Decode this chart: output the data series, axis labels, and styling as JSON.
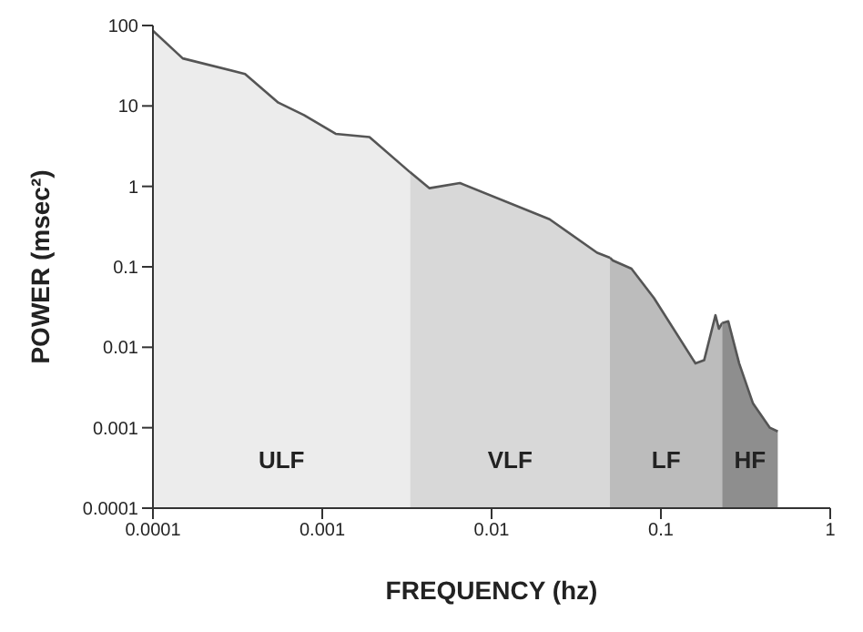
{
  "chart_data": {
    "type": "area",
    "xlabel": "FREQUENCY (hz)",
    "ylabel": "POWER (msec²)",
    "log": "xy",
    "xlim": [
      0.0001,
      1
    ],
    "ylim": [
      0.0001,
      100
    ],
    "xticks": [
      0.0001,
      0.001,
      0.01,
      0.1,
      1
    ],
    "yticks": [
      0.0001,
      0.001,
      0.01,
      0.1,
      1,
      10,
      100
    ],
    "legend": false,
    "grid": false,
    "series": [
      {
        "name": "ULF",
        "color": "#ececec",
        "x": [
          0.0001,
          0.00015,
          0.00035,
          0.00055,
          0.00078,
          0.0012,
          0.0019,
          0.0033
        ],
        "values": [
          86,
          39,
          25,
          11,
          7.7,
          4.5,
          4.1,
          1.5
        ]
      },
      {
        "name": "VLF",
        "color": "#d8d8d8",
        "x": [
          0.0033,
          0.0043,
          0.0065,
          0.022,
          0.042,
          0.05
        ],
        "values": [
          1.5,
          0.95,
          1.1,
          0.39,
          0.15,
          0.13
        ]
      },
      {
        "name": "LF",
        "color": "#bcbcbc",
        "x": [
          0.05,
          0.052,
          0.067,
          0.091,
          0.16,
          0.18,
          0.21,
          0.22,
          0.23
        ],
        "values": [
          0.13,
          0.12,
          0.095,
          0.041,
          0.0063,
          0.0069,
          0.025,
          0.017,
          0.02
        ]
      },
      {
        "name": "HF",
        "color": "#8e8e8e",
        "x": [
          0.23,
          0.25,
          0.29,
          0.35,
          0.44,
          0.49
        ],
        "values": [
          0.02,
          0.021,
          0.0063,
          0.002,
          0.001,
          0.0009
        ]
      }
    ]
  }
}
